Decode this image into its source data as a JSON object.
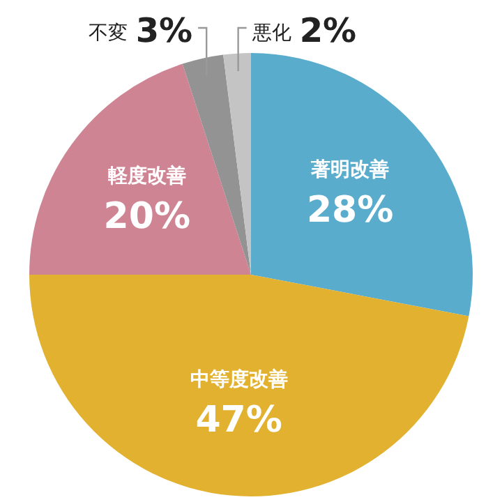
{
  "chart_data": {
    "type": "pie",
    "categories": [
      "著明改善",
      "中等度改善",
      "軽度改善",
      "不変",
      "悪化"
    ],
    "values": [
      28,
      47,
      20,
      3,
      2
    ],
    "colors": [
      "#5aaccd",
      "#e1b12f",
      "#cf8494",
      "#939393",
      "#c4c4c4"
    ],
    "value_labels": [
      "28%",
      "47%",
      "20%",
      "3%",
      "2%"
    ],
    "legend": false
  }
}
